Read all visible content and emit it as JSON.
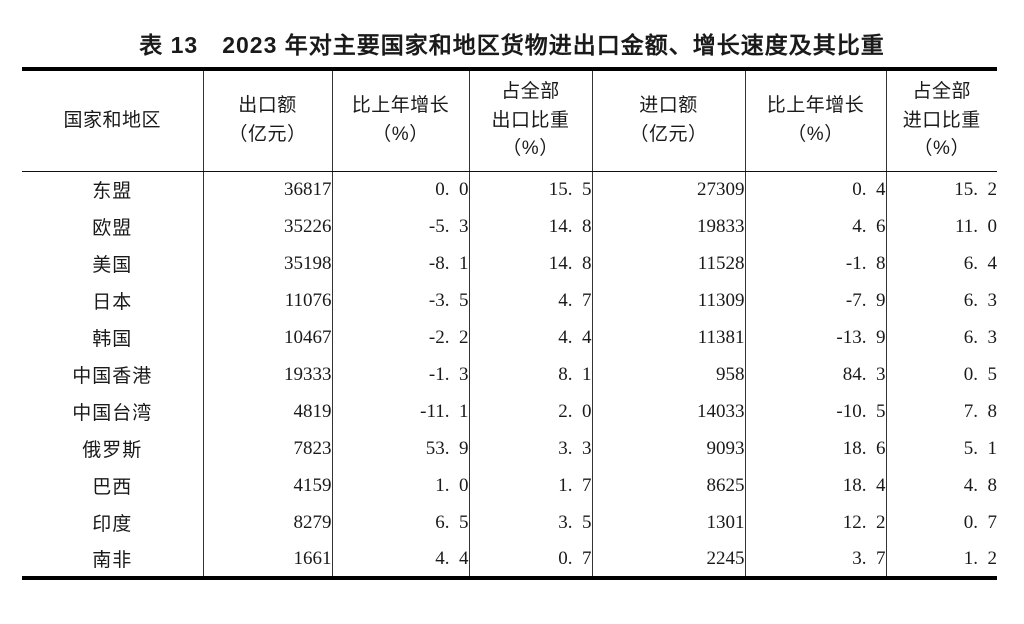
{
  "colors": {
    "background": "#ffffff",
    "text": "#1a1a1a",
    "thick_rule": "#000000",
    "thin_rule": "#333333"
  },
  "title": "表 13　2023 年对主要国家和地区货物进出口金额、增长速度及其比重",
  "table": {
    "columns": [
      {
        "key": "region",
        "lines": [
          "国家和地区"
        ]
      },
      {
        "key": "export_value",
        "lines": [
          "出口额",
          "（亿元）"
        ]
      },
      {
        "key": "export_growth",
        "lines": [
          "比上年增长",
          "（%）"
        ]
      },
      {
        "key": "export_share",
        "lines": [
          "占全部",
          "出口比重",
          "（%）"
        ]
      },
      {
        "key": "import_value",
        "lines": [
          "进口额",
          "（亿元）"
        ]
      },
      {
        "key": "import_growth",
        "lines": [
          "比上年增长",
          "（%）"
        ]
      },
      {
        "key": "import_share",
        "lines": [
          "占全部",
          "进口比重",
          "（%）"
        ]
      }
    ],
    "rows": [
      {
        "region": "东盟",
        "export_value": "36817",
        "export_growth": "0.0",
        "export_share": "15.5",
        "import_value": "27309",
        "import_growth": "0.4",
        "import_share": "15.2"
      },
      {
        "region": "欧盟",
        "export_value": "35226",
        "export_growth": "-5.3",
        "export_share": "14.8",
        "import_value": "19833",
        "import_growth": "4.6",
        "import_share": "11.0"
      },
      {
        "region": "美国",
        "export_value": "35198",
        "export_growth": "-8.1",
        "export_share": "14.8",
        "import_value": "11528",
        "import_growth": "-1.8",
        "import_share": "6.4"
      },
      {
        "region": "日本",
        "export_value": "11076",
        "export_growth": "-3.5",
        "export_share": "4.7",
        "import_value": "11309",
        "import_growth": "-7.9",
        "import_share": "6.3"
      },
      {
        "region": "韩国",
        "export_value": "10467",
        "export_growth": "-2.2",
        "export_share": "4.4",
        "import_value": "11381",
        "import_growth": "-13.9",
        "import_share": "6.3"
      },
      {
        "region": "中国香港",
        "export_value": "19333",
        "export_growth": "-1.3",
        "export_share": "8.1",
        "import_value": "958",
        "import_growth": "84.3",
        "import_share": "0.5"
      },
      {
        "region": "中国台湾",
        "export_value": "4819",
        "export_growth": "-11.1",
        "export_share": "2.0",
        "import_value": "14033",
        "import_growth": "-10.5",
        "import_share": "7.8"
      },
      {
        "region": "俄罗斯",
        "export_value": "7823",
        "export_growth": "53.9",
        "export_share": "3.3",
        "import_value": "9093",
        "import_growth": "18.6",
        "import_share": "5.1"
      },
      {
        "region": "巴西",
        "export_value": "4159",
        "export_growth": "1.0",
        "export_share": "1.7",
        "import_value": "8625",
        "import_growth": "18.4",
        "import_share": "4.8"
      },
      {
        "region": "印度",
        "export_value": "8279",
        "export_growth": "6.5",
        "export_share": "3.5",
        "import_value": "1301",
        "import_growth": "12.2",
        "import_share": "0.7"
      },
      {
        "region": "南非",
        "export_value": "1661",
        "export_growth": "4.4",
        "export_share": "0.7",
        "import_value": "2245",
        "import_growth": "3.7",
        "import_share": "1.2"
      }
    ]
  }
}
